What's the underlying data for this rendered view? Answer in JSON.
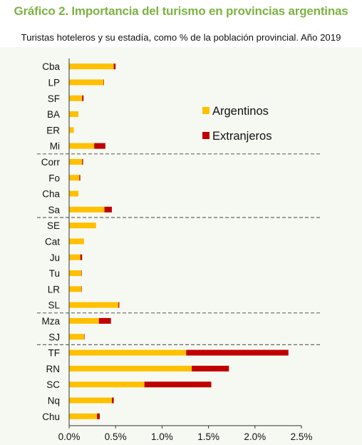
{
  "title": "Gráfico 2. Importancia del turismo en provincias argentinas",
  "subtitle": "Turistas hoteleros y su estadía, como % de la población provincial. Año 2019",
  "chart_data": {
    "type": "bar",
    "orientation": "horizontal",
    "stacked": true,
    "categories": [
      "Cba",
      "LP",
      "SF",
      "BA",
      "ER",
      "Mi",
      "Corr",
      "Fo",
      "Cha",
      "Sa",
      "SE",
      "Cat",
      "Ju",
      "Tu",
      "LR",
      "SL",
      "Mza",
      "SJ",
      "TF",
      "RN",
      "SC",
      "Nq",
      "Chu"
    ],
    "series": [
      {
        "name": "Argentinos",
        "color": "#ffc000",
        "values": [
          0.48,
          0.37,
          0.14,
          0.1,
          0.05,
          0.27,
          0.14,
          0.11,
          0.1,
          0.38,
          0.29,
          0.16,
          0.12,
          0.13,
          0.13,
          0.53,
          0.32,
          0.16,
          1.26,
          1.32,
          0.81,
          0.46,
          0.3
        ]
      },
      {
        "name": "Extranjeros",
        "color": "#c00000",
        "values": [
          0.02,
          0.005,
          0.015,
          0.0,
          0.0,
          0.12,
          0.01,
          0.01,
          0.0,
          0.08,
          0.0,
          0.0,
          0.02,
          0.005,
          0.005,
          0.01,
          0.13,
          0.005,
          1.1,
          0.4,
          0.72,
          0.02,
          0.03
        ]
      }
    ],
    "xlim": [
      0,
      2.5
    ],
    "xticks": [
      "0.0%",
      "0.5%",
      "1.0%",
      "1.5%",
      "2.0%",
      "2.5%"
    ],
    "xtick_values": [
      0,
      0.5,
      1.0,
      1.5,
      2.0,
      2.5
    ],
    "grid": false,
    "dashed_separators_after": [
      "Mi",
      "Sa",
      "SL",
      "SJ"
    ],
    "legend_placement": "top-right"
  }
}
